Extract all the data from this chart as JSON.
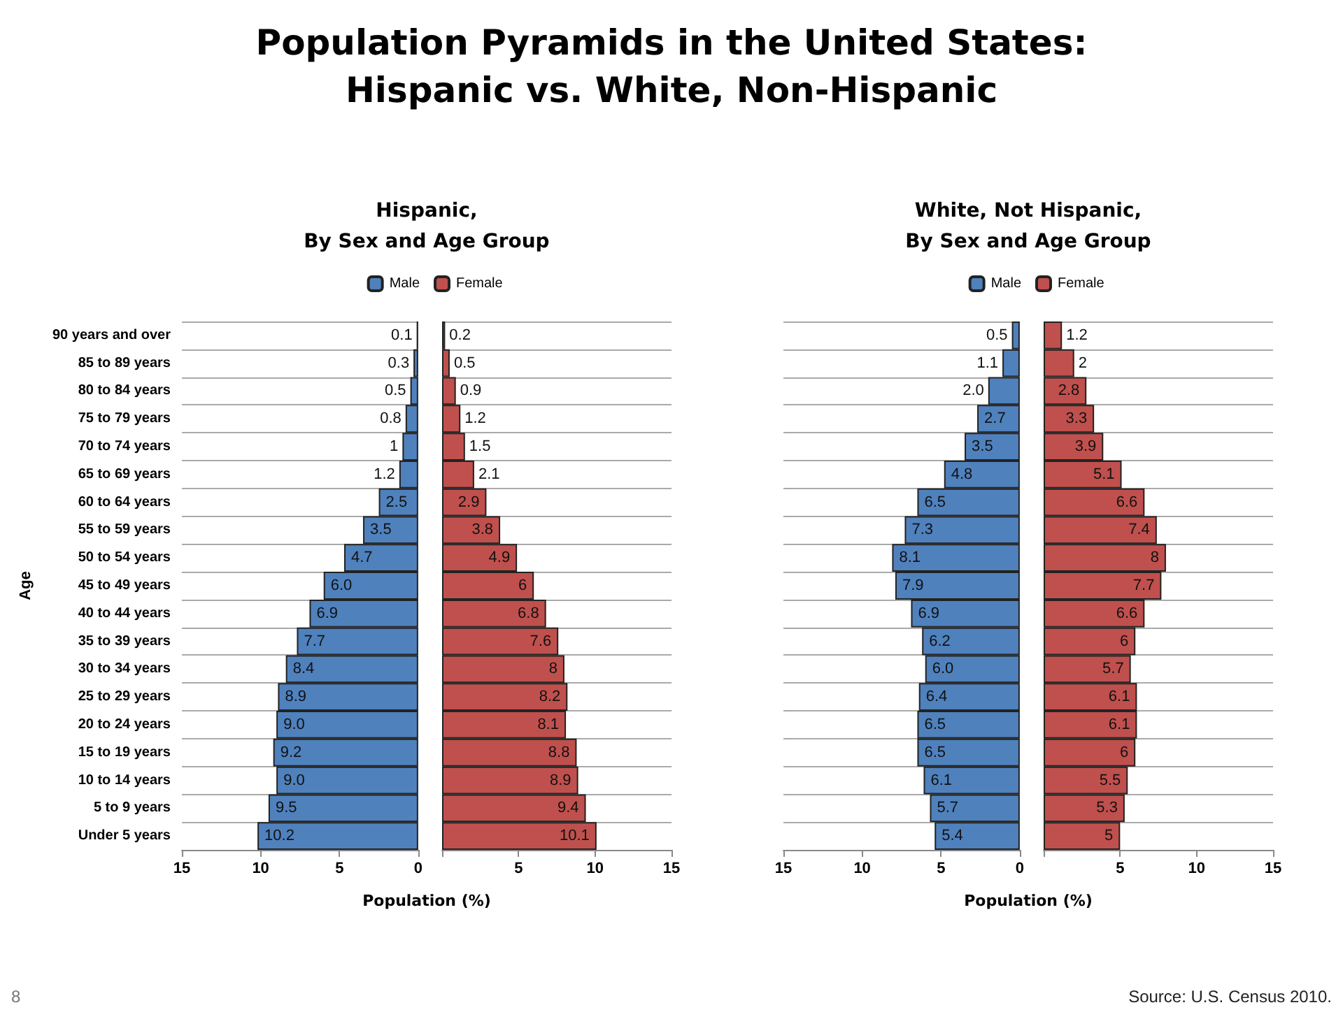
{
  "chart_data": [
    {
      "type": "bar",
      "orientation": "horizontal",
      "title": "Population Pyramids in the United States:\nHispanic vs. White, Non-Hispanic",
      "subtitle": "Hispanic,\nBy Sex and Age Group",
      "xlabel": "Population (%)",
      "ylabel": "Age",
      "legend": "top",
      "grid": "y",
      "annotations": [
        "8"
      ],
      "categories": [
        "90 years and over",
        "85 to 89 years",
        "80 to 84 years",
        "75 to 79 years",
        "70 to 74 years",
        "65 to 69 years",
        "60 to 64 years",
        "55 to 59 years",
        "50 to 54 years",
        "45 to 49 years",
        "40 to 44 years",
        "35 to 39 years",
        "30 to 34 years",
        "25 to 29 years",
        "20 to 24 years",
        "15 to 19 years",
        "10 to 14 years",
        "5 to 9 years",
        "Under 5 years"
      ],
      "xlim": [
        15,
        0
      ],
      "xticks": [
        15,
        10,
        5,
        0
      ],
      "series": [
        {
          "name": "Male",
          "color": "#4f81bd",
          "values": [
            0.1,
            0.3,
            0.5,
            0.8,
            1,
            1.2,
            2.5,
            3.5,
            4.7,
            6.0,
            6.9,
            7.7,
            8.4,
            8.9,
            9.0,
            9.2,
            9.0,
            9.5,
            10.2
          ],
          "value_labels": [
            "0.1",
            "0.3",
            "0.5",
            "0.8",
            "1",
            "1.2",
            "2.5",
            "3.5",
            "4.7",
            "6.0",
            "6.9",
            "7.7",
            "8.4",
            "8.9",
            "9.0",
            "9.2",
            "9.0",
            "9.5",
            "10.2"
          ]
        }
      ]
    },
    {
      "type": "bar",
      "orientation": "horizontal",
      "legend": "top",
      "grid": "y",
      "categories": [
        null,
        null,
        null,
        null,
        null,
        null,
        null,
        null,
        null,
        null,
        null,
        null,
        null,
        null,
        null,
        null,
        null,
        null,
        null
      ],
      "xlim": [
        0,
        15
      ],
      "xticks": [
        {
          "value": 0,
          "label": null
        },
        5,
        10,
        15
      ],
      "series": [
        {
          "name": "Female",
          "color": "#c0504d",
          "values": [
            0.2,
            0.5,
            0.9,
            1.2,
            1.5,
            2.1,
            2.9,
            3.8,
            4.9,
            6,
            6.8,
            7.6,
            8,
            8.2,
            8.1,
            8.8,
            8.9,
            9.4,
            10.1
          ],
          "value_labels": [
            "0.2",
            "0.5",
            "0.9",
            "1.2",
            "1.5",
            "2.1",
            "2.9",
            "3.8",
            "4.9",
            "6",
            "6.8",
            "7.6",
            "8",
            "8.2",
            "8.1",
            "8.8",
            "8.9",
            "9.4",
            "10.1"
          ]
        }
      ]
    },
    {
      "type": "bar",
      "orientation": "horizontal",
      "subtitle": "White, Not Hispanic,\nBy Sex and Age Group",
      "xlabel": "Population (%)",
      "legend": "top",
      "grid": "y",
      "categories": [
        null,
        null,
        null,
        null,
        null,
        null,
        null,
        null,
        null,
        null,
        null,
        null,
        null,
        null,
        null,
        null,
        null,
        null,
        null
      ],
      "xlim": [
        15,
        0
      ],
      "xticks": [
        15,
        10,
        5,
        0
      ],
      "series": [
        {
          "name": "Male",
          "color": "#4f81bd",
          "values": [
            0.5,
            1.1,
            2.0,
            2.7,
            3.5,
            4.8,
            6.5,
            7.3,
            8.1,
            7.9,
            6.9,
            6.2,
            6.0,
            6.4,
            6.5,
            6.5,
            6.1,
            5.7,
            5.4
          ],
          "value_labels": [
            "0.5",
            "1.1",
            "2.0",
            "2.7",
            "3.5",
            "4.8",
            "6.5",
            "7.3",
            "8.1",
            "7.9",
            "6.9",
            "6.2",
            "6.0",
            "6.4",
            "6.5",
            "6.5",
            "6.1",
            "5.7",
            "5.4"
          ]
        }
      ]
    },
    {
      "type": "bar",
      "orientation": "horizontal",
      "legend": "top",
      "grid": "y",
      "annotations": [
        "Source: U.S. Census 2010."
      ],
      "categories": [
        null,
        null,
        null,
        null,
        null,
        null,
        null,
        null,
        null,
        null,
        null,
        null,
        null,
        null,
        null,
        null,
        null,
        null,
        null
      ],
      "xlim": [
        0,
        15
      ],
      "xticks": [
        {
          "value": 0,
          "label": null
        },
        5,
        10,
        15
      ],
      "series": [
        {
          "name": "Female",
          "color": "#c0504d",
          "values": [
            1.2,
            2,
            2.8,
            3.3,
            3.9,
            5.1,
            6.6,
            7.4,
            8,
            7.7,
            6.6,
            6,
            5.7,
            6.1,
            6.1,
            6,
            5.5,
            5.3,
            5
          ],
          "value_labels": [
            "1.2",
            "2",
            "2.8",
            "3.3",
            "3.9",
            "5.1",
            "6.6",
            "7.4",
            "8",
            "7.7",
            "6.6",
            "6",
            "5.7",
            "6.1",
            "6.1",
            "6",
            "5.5",
            "5.3",
            "5"
          ]
        }
      ]
    }
  ]
}
